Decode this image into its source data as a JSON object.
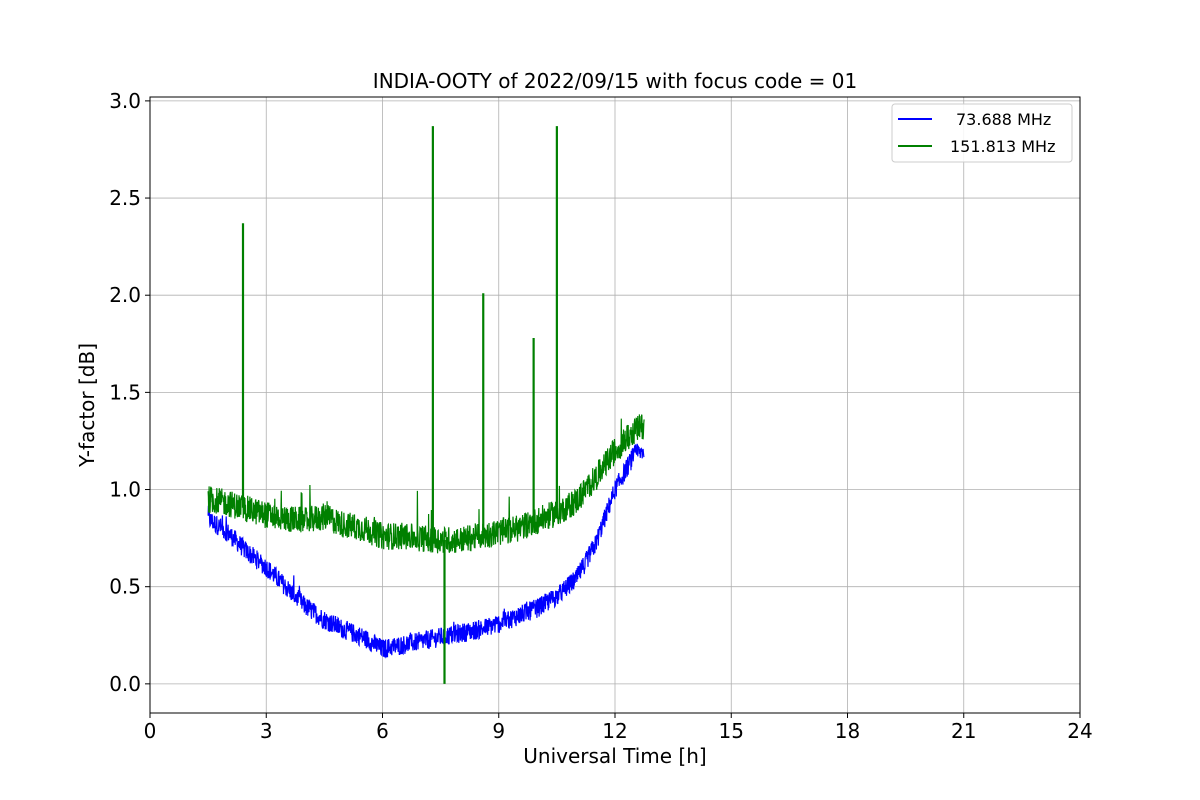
{
  "chart_data": {
    "type": "line",
    "title": "INDIA-OOTY of 2022/09/15 with focus code = 01",
    "xlabel": "Universal Time [h]",
    "ylabel": "Y-factor [dB]",
    "xlim": [
      0,
      24
    ],
    "ylim": [
      -0.15,
      3.02
    ],
    "xticks": [
      0,
      3,
      6,
      9,
      12,
      15,
      18,
      21,
      24
    ],
    "yticks": [
      0.0,
      0.5,
      1.0,
      1.5,
      2.0,
      2.5,
      3.0
    ],
    "xtick_labels": [
      "0",
      "3",
      "6",
      "9",
      "12",
      "15",
      "18",
      "21",
      "24"
    ],
    "ytick_labels": [
      "0.0",
      "0.5",
      "1.0",
      "1.5",
      "2.0",
      "2.5",
      "3.0"
    ],
    "grid": true,
    "legend_position": "top-right",
    "series": [
      {
        "name": "73.688 MHz",
        "color": "#0000ff",
        "x": [
          1.5,
          2.0,
          2.5,
          3.0,
          3.5,
          4.0,
          4.5,
          5.0,
          5.5,
          6.0,
          6.5,
          7.0,
          7.5,
          8.0,
          8.5,
          9.0,
          9.5,
          10.0,
          10.5,
          11.0,
          11.5,
          12.0,
          12.5,
          12.75
        ],
        "values": [
          0.85,
          0.78,
          0.68,
          0.6,
          0.5,
          0.4,
          0.33,
          0.28,
          0.24,
          0.18,
          0.2,
          0.22,
          0.24,
          0.26,
          0.28,
          0.31,
          0.35,
          0.39,
          0.45,
          0.54,
          0.72,
          1.0,
          1.18,
          1.2
        ]
      },
      {
        "name": "151.813 MHz",
        "color": "#008000",
        "x": [
          1.5,
          2.0,
          2.5,
          3.0,
          3.5,
          4.0,
          4.5,
          5.0,
          5.5,
          6.0,
          6.5,
          7.0,
          7.5,
          8.0,
          8.5,
          9.0,
          9.5,
          10.0,
          10.5,
          11.0,
          11.5,
          12.0,
          12.5,
          12.75
        ],
        "values": [
          0.95,
          0.93,
          0.9,
          0.87,
          0.85,
          0.84,
          0.86,
          0.82,
          0.8,
          0.76,
          0.76,
          0.75,
          0.74,
          0.74,
          0.76,
          0.78,
          0.8,
          0.84,
          0.88,
          0.94,
          1.06,
          1.2,
          1.3,
          1.33
        ],
        "spikes": [
          [
            2.4,
            2.37
          ],
          [
            7.3,
            2.87
          ],
          [
            7.6,
            0.0
          ],
          [
            8.6,
            2.01
          ],
          [
            9.9,
            1.78
          ],
          [
            10.5,
            2.87
          ]
        ]
      }
    ]
  }
}
